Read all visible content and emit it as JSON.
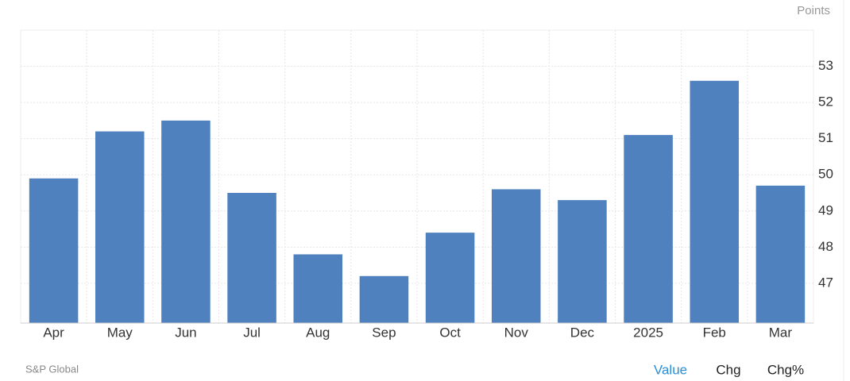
{
  "chart_data": {
    "type": "bar",
    "unit_label": "Points",
    "categories": [
      "Apr",
      "May",
      "Jun",
      "Jul",
      "Aug",
      "Sep",
      "Oct",
      "Nov",
      "Dec",
      "2025",
      "Feb",
      "Mar"
    ],
    "values": [
      49.9,
      51.2,
      51.5,
      49.5,
      47.8,
      47.2,
      48.4,
      49.6,
      49.3,
      51.1,
      52.6,
      49.7
    ],
    "color": "#4e81bd",
    "ylim": [
      45.9,
      54.0
    ],
    "yticks": [
      47,
      48,
      49,
      50,
      51,
      52,
      53
    ],
    "grid": true,
    "source": "S&P Global",
    "tabs": [
      "Value",
      "Chg",
      "Chg%"
    ],
    "active_tab": 0
  }
}
